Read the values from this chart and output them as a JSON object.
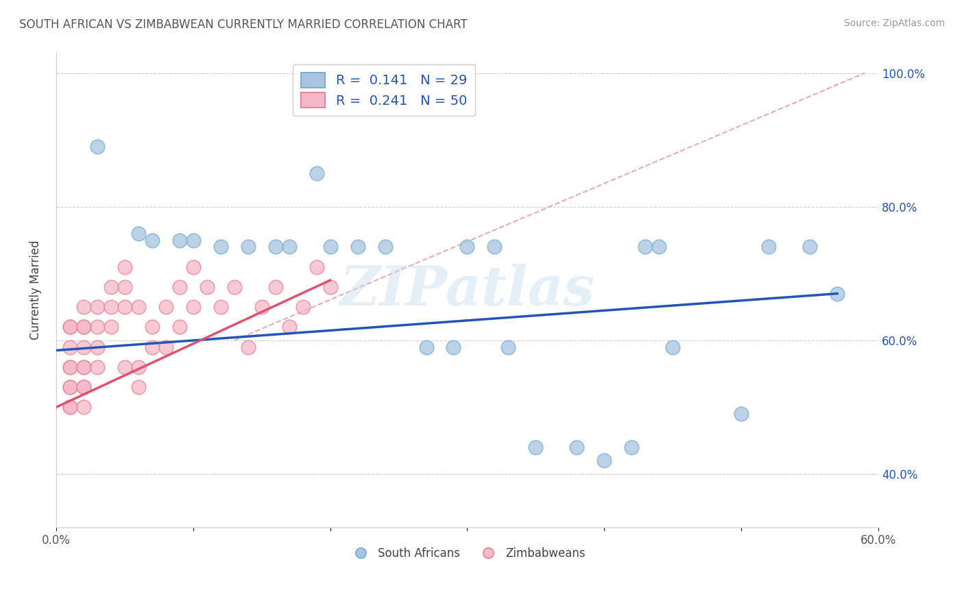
{
  "title": "SOUTH AFRICAN VS ZIMBABWEAN CURRENTLY MARRIED CORRELATION CHART",
  "source": "Source: ZipAtlas.com",
  "ylabel": "Currently Married",
  "xlim": [
    0.0,
    0.6
  ],
  "ylim": [
    0.32,
    1.03
  ],
  "sa_color": "#a8c4e0",
  "sa_edge_color": "#7aafd4",
  "zim_color": "#f4b8c8",
  "zim_edge_color": "#e8849a",
  "sa_line_color": "#2255bb",
  "zim_line_color": "#e05070",
  "ref_line_color": "#e8a0b0",
  "legend_color_text": "#2255bb",
  "watermark_text": "ZIPatlas",
  "background_color": "#ffffff",
  "grid_color": "#cccccc",
  "south_africans_x": [
    0.03,
    0.06,
    0.07,
    0.09,
    0.1,
    0.12,
    0.14,
    0.16,
    0.17,
    0.19,
    0.2,
    0.22,
    0.24,
    0.3,
    0.32,
    0.35,
    0.38,
    0.4,
    0.42,
    0.43,
    0.44,
    0.45,
    0.5,
    0.52,
    0.55,
    0.57,
    0.27,
    0.29,
    0.33
  ],
  "south_africans_y": [
    0.89,
    0.76,
    0.75,
    0.75,
    0.75,
    0.74,
    0.74,
    0.74,
    0.74,
    0.85,
    0.74,
    0.74,
    0.74,
    0.74,
    0.74,
    0.44,
    0.44,
    0.42,
    0.44,
    0.74,
    0.74,
    0.59,
    0.49,
    0.74,
    0.74,
    0.67,
    0.59,
    0.59,
    0.59
  ],
  "zimbabweans_x": [
    0.01,
    0.01,
    0.01,
    0.01,
    0.01,
    0.01,
    0.01,
    0.01,
    0.01,
    0.02,
    0.02,
    0.02,
    0.02,
    0.02,
    0.02,
    0.02,
    0.02,
    0.02,
    0.03,
    0.03,
    0.03,
    0.03,
    0.04,
    0.04,
    0.04,
    0.05,
    0.05,
    0.05,
    0.05,
    0.06,
    0.06,
    0.06,
    0.07,
    0.07,
    0.08,
    0.08,
    0.09,
    0.09,
    0.1,
    0.1,
    0.11,
    0.12,
    0.13,
    0.14,
    0.15,
    0.16,
    0.17,
    0.18,
    0.19,
    0.2
  ],
  "zimbabweans_y": [
    0.62,
    0.59,
    0.56,
    0.53,
    0.5,
    0.56,
    0.53,
    0.5,
    0.62,
    0.65,
    0.62,
    0.59,
    0.56,
    0.53,
    0.5,
    0.56,
    0.53,
    0.62,
    0.65,
    0.62,
    0.59,
    0.56,
    0.68,
    0.65,
    0.62,
    0.71,
    0.68,
    0.65,
    0.56,
    0.65,
    0.56,
    0.53,
    0.62,
    0.59,
    0.65,
    0.59,
    0.68,
    0.62,
    0.71,
    0.65,
    0.68,
    0.65,
    0.68,
    0.59,
    0.65,
    0.68,
    0.62,
    0.65,
    0.71,
    0.68
  ],
  "sa_trend_x0": 0.0,
  "sa_trend_x1": 0.57,
  "sa_trend_y0": 0.585,
  "sa_trend_y1": 0.67,
  "zim_trend_x0": 0.0,
  "zim_trend_x1": 0.2,
  "zim_trend_y0": 0.5,
  "zim_trend_y1": 0.69,
  "ref_line_x0": 0.13,
  "ref_line_y0": 0.6,
  "ref_line_x1": 0.59,
  "ref_line_y1": 1.0
}
